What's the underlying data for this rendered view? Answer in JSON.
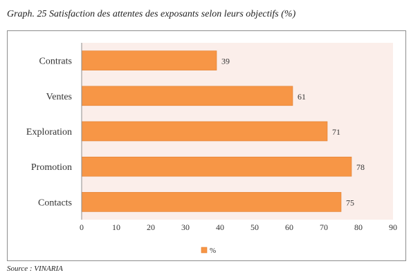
{
  "caption": "Graph. 25 Satisfaction des attentes des exposants selon leurs objectifs (%)",
  "source": "Source : VINARIA",
  "colors": {
    "bar": "#F79646",
    "bar_edge": "#E07E2E",
    "plot_bg": "#FBEEEA"
  },
  "chart_data": {
    "type": "bar",
    "orientation": "horizontal",
    "title": "",
    "categories": [
      "Contrats",
      "Ventes",
      "Exploration",
      "Promotion",
      "Contacts"
    ],
    "series": [
      {
        "name": "%",
        "values": [
          39,
          61,
          71,
          78,
          75
        ]
      }
    ],
    "xlim": [
      0,
      90
    ],
    "xticks": [
      "0",
      "10",
      "20",
      "30",
      "40",
      "50",
      "60",
      "70",
      "80",
      "90"
    ],
    "xlabel": "",
    "ylabel": "",
    "legend": "bottom",
    "grid": false
  }
}
